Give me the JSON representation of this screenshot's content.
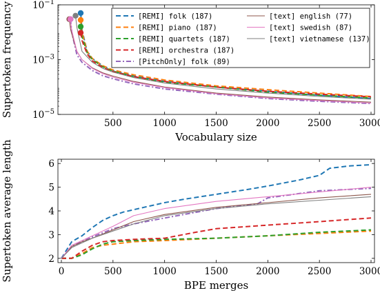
{
  "chart_data": [
    {
      "type": "line",
      "xlabel": "Vocabulary size",
      "ylabel": "Supertoken frequency",
      "x_ticks": [
        "500",
        "1000",
        "1500",
        "2000",
        "2500",
        "3000"
      ],
      "y_ticks": [
        "10^{-5}",
        "10^{-3}",
        "10^{-1}"
      ],
      "xlim": [
        0,
        3000
      ],
      "ylim_log10": [
        -5,
        -1
      ],
      "yscale": "log",
      "legend_position": "top-right",
      "grid": false,
      "series": [
        {
          "name": "[REMI] folk (187)",
          "color": "#1f77b4",
          "dash": "dashed",
          "start_marker": true,
          "x": [
            187,
            200,
            250,
            300,
            400,
            500,
            700,
            1000,
            1500,
            2000,
            2500,
            3000
          ],
          "y": [
            0.05,
            0.012,
            0.002,
            0.0011,
            0.0006,
            0.0004,
            0.00025,
            0.00016,
            0.0001,
            7e-05,
            5e-05,
            3.8e-05
          ]
        },
        {
          "name": "[REMI] piano (187)",
          "color": "#ff7f0e",
          "dash": "dashed",
          "start_marker": true,
          "x": [
            187,
            200,
            250,
            300,
            400,
            500,
            700,
            1000,
            1500,
            2000,
            2500,
            3000
          ],
          "y": [
            0.028,
            0.01,
            0.002,
            0.0011,
            0.0006,
            0.00042,
            0.00028,
            0.00018,
            0.00011,
            8e-05,
            6e-05,
            4.5e-05
          ]
        },
        {
          "name": "[REMI] quartets (187)",
          "color": "#2ca02c",
          "dash": "dashed",
          "start_marker": true,
          "x": [
            187,
            200,
            250,
            300,
            400,
            500,
            700,
            1000,
            1500,
            2000,
            2500,
            3000
          ],
          "y": [
            0.016,
            0.007,
            0.0018,
            0.001,
            0.00055,
            0.00038,
            0.00024,
            0.00015,
            0.0001,
            6.5e-05,
            5e-05,
            4e-05
          ]
        },
        {
          "name": "[REMI] orchestra (187)",
          "color": "#d62728",
          "dash": "dashed",
          "start_marker": true,
          "x": [
            187,
            200,
            250,
            300,
            400,
            500,
            700,
            1000,
            1500,
            2000,
            2500,
            3000
          ],
          "y": [
            0.0095,
            0.005,
            0.0016,
            0.0009,
            0.00052,
            0.00036,
            0.00024,
            0.00016,
            0.0001,
            7e-05,
            5.5e-05,
            4.4e-05
          ]
        },
        {
          "name": "[PitchOnly] folk (89)",
          "color": "#9467bd",
          "dash": "dashdot",
          "start_marker": true,
          "x": [
            89,
            100,
            150,
            200,
            300,
            400,
            500,
            700,
            1000,
            1500,
            2000,
            2500,
            3000
          ],
          "y": [
            0.03,
            0.01,
            0.0015,
            0.0008,
            0.0004,
            0.00026,
            0.0002,
            0.00013,
            8.5e-05,
            5.5e-05,
            3.8e-05,
            3e-05,
            2.5e-05
          ]
        },
        {
          "name": "[text] english (77)",
          "color": "#8c564b",
          "dash": "solid",
          "start_marker": true,
          "x": [
            77,
            90,
            150,
            200,
            300,
            400,
            500,
            700,
            1000,
            1500,
            2000,
            2500,
            3000
          ],
          "y": [
            0.03,
            0.012,
            0.002,
            0.001,
            0.0005,
            0.00033,
            0.00025,
            0.00016,
            0.0001,
            6e-05,
            4.3e-05,
            3.4e-05,
            2.8e-05
          ]
        },
        {
          "name": "[text] swedish (87)",
          "color": "#e377c2",
          "dash": "solid",
          "start_marker": true,
          "x": [
            87,
            100,
            150,
            200,
            300,
            400,
            500,
            700,
            1000,
            1500,
            2000,
            2500,
            3000
          ],
          "y": [
            0.03,
            0.012,
            0.002,
            0.001,
            0.00048,
            0.00031,
            0.00023,
            0.00015,
            9.5e-05,
            5.7e-05,
            4e-05,
            3.2e-05,
            2.6e-05
          ]
        },
        {
          "name": "[text] vietnamese (137)",
          "color": "#7f7f7f",
          "dash": "solid",
          "start_marker": true,
          "x": [
            137,
            150,
            200,
            300,
            400,
            500,
            700,
            1000,
            1500,
            2000,
            2500,
            3000
          ],
          "y": [
            0.04,
            0.015,
            0.002,
            0.0008,
            0.00048,
            0.00035,
            0.00022,
            0.00014,
            8.5e-05,
            6e-05,
            4.5e-05,
            3.6e-05
          ]
        }
      ]
    },
    {
      "type": "line",
      "xlabel": "BPE merges",
      "ylabel": "Supertoken average length",
      "x_ticks": [
        "0",
        "500",
        "1000",
        "1500",
        "2000",
        "2500",
        "3000"
      ],
      "y_ticks": [
        "2",
        "3",
        "4",
        "5",
        "6"
      ],
      "xlim": [
        0,
        3000
      ],
      "ylim": [
        2,
        6
      ],
      "grid": false,
      "series": [
        {
          "color": "#1f77b4",
          "dash": "dashed",
          "x": [
            0,
            100,
            200,
            300,
            400,
            500,
            600,
            800,
            1000,
            1200,
            1500,
            1800,
            2000,
            2300,
            2500,
            2600,
            2800,
            3000
          ],
          "y": [
            2.0,
            2.7,
            2.95,
            3.3,
            3.6,
            3.8,
            3.95,
            4.15,
            4.35,
            4.5,
            4.7,
            4.9,
            5.05,
            5.3,
            5.5,
            5.8,
            5.9,
            5.95
          ]
        },
        {
          "color": "#ff7f0e",
          "dash": "dashed",
          "x": [
            0,
            100,
            200,
            300,
            400,
            500,
            700,
            1000,
            1500,
            2000,
            2500,
            3000
          ],
          "y": [
            2.0,
            2.0,
            2.2,
            2.45,
            2.55,
            2.6,
            2.7,
            2.75,
            2.85,
            2.95,
            3.05,
            3.15
          ]
        },
        {
          "color": "#2ca02c",
          "dash": "dashed",
          "x": [
            0,
            100,
            200,
            300,
            400,
            500,
            700,
            1000,
            1500,
            2000,
            2500,
            3000
          ],
          "y": [
            2.0,
            2.0,
            2.15,
            2.4,
            2.6,
            2.7,
            2.75,
            2.8,
            2.85,
            2.95,
            3.1,
            3.2
          ]
        },
        {
          "color": "#d62728",
          "dash": "dashed",
          "x": [
            0,
            100,
            200,
            300,
            400,
            500,
            700,
            1000,
            1300,
            1500,
            2000,
            2500,
            3000
          ],
          "y": [
            2.0,
            2.0,
            2.3,
            2.55,
            2.7,
            2.75,
            2.8,
            2.85,
            3.1,
            3.25,
            3.4,
            3.55,
            3.7
          ]
        },
        {
          "color": "#9467bd",
          "dash": "dashdot",
          "x": [
            0,
            100,
            200,
            300,
            500,
            700,
            1000,
            1500,
            1900,
            2000,
            2500,
            3000
          ],
          "y": [
            2.0,
            2.5,
            2.7,
            2.9,
            3.25,
            3.45,
            3.7,
            4.1,
            4.3,
            4.55,
            4.85,
            4.95
          ]
        },
        {
          "color": "#8c564b",
          "dash": "solid",
          "x": [
            0,
            100,
            200,
            300,
            500,
            700,
            1000,
            1500,
            2000,
            2500,
            3000
          ],
          "y": [
            2.0,
            2.5,
            2.7,
            2.85,
            3.2,
            3.55,
            3.85,
            4.15,
            4.35,
            4.55,
            4.7
          ]
        },
        {
          "color": "#e377c2",
          "dash": "solid",
          "x": [
            0,
            100,
            200,
            300,
            500,
            700,
            1000,
            1500,
            2000,
            2500,
            3000
          ],
          "y": [
            2.0,
            2.55,
            2.75,
            2.95,
            3.35,
            3.8,
            4.1,
            4.4,
            4.6,
            4.8,
            5.0
          ]
        },
        {
          "color": "#7f7f7f",
          "dash": "solid",
          "x": [
            0,
            100,
            200,
            300,
            500,
            700,
            1000,
            1500,
            2000,
            2500,
            3000
          ],
          "y": [
            2.0,
            2.45,
            2.65,
            2.85,
            3.15,
            3.45,
            3.8,
            4.1,
            4.3,
            4.45,
            4.6
          ]
        }
      ]
    }
  ]
}
